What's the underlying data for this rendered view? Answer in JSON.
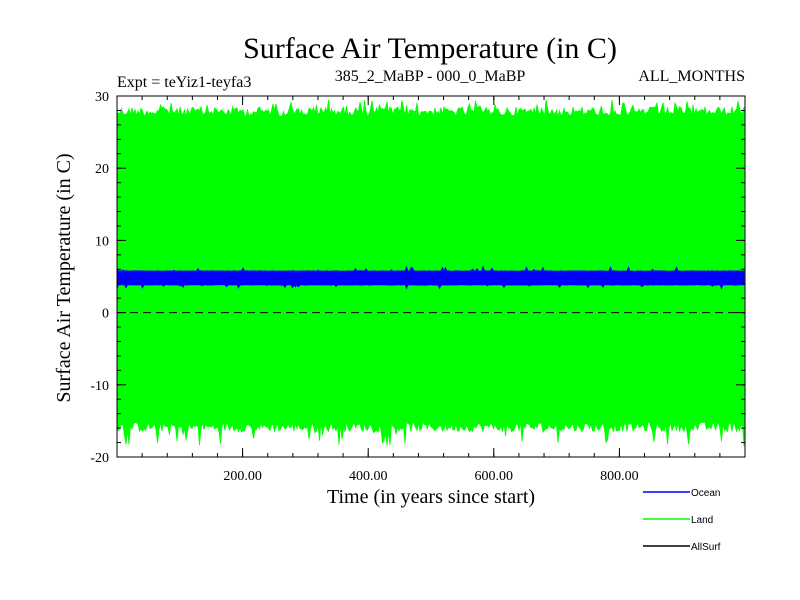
{
  "chart_data": {
    "type": "line",
    "title": "Surface Air Temperature (in C)",
    "subtitle_left": "Expt = teYiz1-teyfa3",
    "subtitle_center": "385_2_MaBP - 000_0_MaBP",
    "subtitle_right": "ALL_MONTHS",
    "xlabel": "Time (in years since start)",
    "ylabel": "Surface Air Temperature (in C)",
    "xlim": [
      0,
      1000
    ],
    "ylim": [
      -20,
      30
    ],
    "x_ticks": [
      200,
      400,
      600,
      800
    ],
    "x_tick_labels": [
      "200.00",
      "400.00",
      "600.00",
      "800.00"
    ],
    "y_ticks": [
      -20,
      -10,
      0,
      10,
      20,
      30
    ],
    "y_tick_labels": [
      "-20",
      "-10",
      "0",
      "10",
      "20",
      "30"
    ],
    "reference_line": {
      "y": 0,
      "style": "dashed"
    },
    "series": [
      {
        "name": "Land",
        "color": "#00ff00",
        "x_start": 0,
        "x_end": 1000,
        "band_min": -16.5,
        "band_max": 28.5,
        "spike_min": -18.5,
        "spike_max": 29.5
      },
      {
        "name": "Ocean",
        "color": "#0000ff",
        "x_start": 0,
        "x_end": 1000,
        "band_min": 3.8,
        "band_max": 5.8,
        "spike_min": 3.3,
        "spike_max": 6.4
      },
      {
        "name": "AllSurf",
        "color": "#000000"
      }
    ],
    "legend": [
      {
        "label": "Ocean",
        "color": "#0000ff"
      },
      {
        "label": "Land",
        "color": "#00ff00"
      },
      {
        "label": "AllSurf",
        "color": "#000000"
      }
    ],
    "legend_position": "bottom-right"
  }
}
